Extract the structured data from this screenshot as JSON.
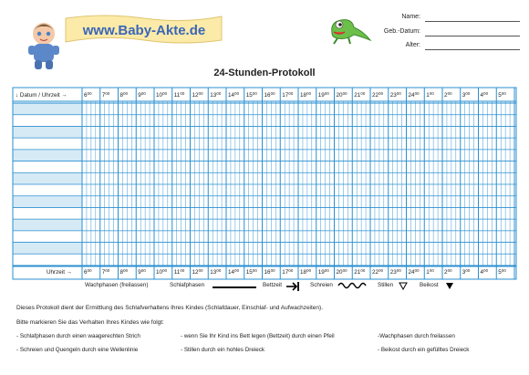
{
  "logo": {
    "text": "www.Baby-Akte.de"
  },
  "meta": {
    "name_label": "Name:",
    "birth_label": "Geb.-Datum:",
    "age_label": "Alter:"
  },
  "title": "24-Stunden-Protokoll",
  "table": {
    "header_label": "↓ Datum / Uhrzeit →",
    "footer_label": "Uhrzeit →",
    "hours": [
      "6",
      "7",
      "8",
      "9",
      "10",
      "11",
      "12",
      "13",
      "14",
      "15",
      "16",
      "17",
      "18",
      "19",
      "20",
      "21",
      "22",
      "23",
      "24",
      "1",
      "2",
      "3",
      "4",
      "5"
    ],
    "hour_suffix": "⁰⁰",
    "rows": 14,
    "subdivisions_per_hour": 4,
    "shaded_row_color": "#d6eaf6",
    "line_color": "#2a8fd0"
  },
  "legend": {
    "wake": "Wachphasen  (freilassen)",
    "sleep": "Schlafphasen",
    "bed": "Bettzeit",
    "cry": "Schreien",
    "still": "Stillen",
    "food": "Beikost"
  },
  "notes": {
    "line1": "Dieses Protokoll dient der Ermittlung des Schlafverhaltens Ihres Kindes (Schlafdauer, Einschlaf- und Aufwachzeiten).",
    "line2": "Bitte markieren Sie das Verhalten Ihres Kindes wie folgt:"
  },
  "bullets": {
    "b1": "- Schlafphasen durch einen waagerechten Strich",
    "b2": "- wenn Sie Ihr Kind ins Bett legen (Bettzeit) durch einen Pfeil",
    "b3": "-Wachphasen durch freilassen",
    "b4": "- Schreien und Quengeln durch eine Wellenlinie",
    "b5": "- Stillen durch ein hohles Dreieck",
    "b6": "- Beikost durch ein gefülltes Dreieck"
  }
}
